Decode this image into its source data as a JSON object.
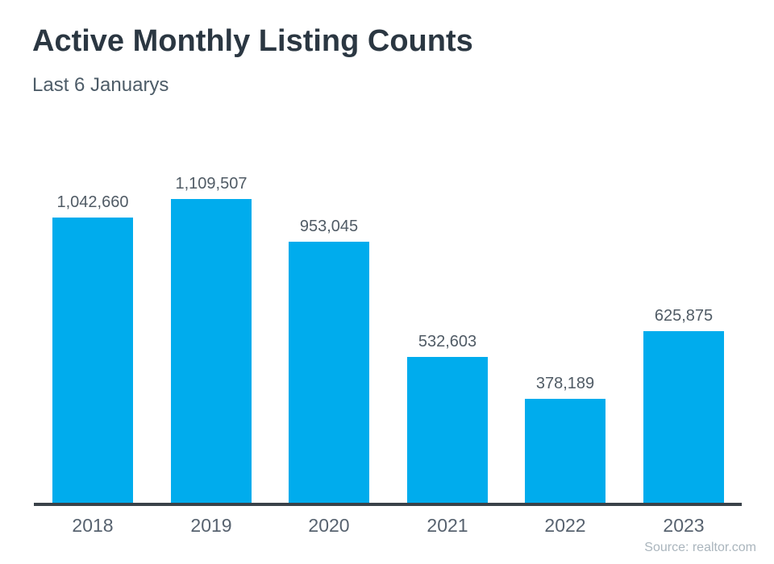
{
  "header": {
    "title": "Active Monthly Listing Counts",
    "subtitle": "Last 6 Januarys"
  },
  "footer": {
    "source": "Source: realtor.com"
  },
  "chart_data": {
    "type": "bar",
    "title": "Active Monthly Listing Counts",
    "subtitle": "Last 6 Januarys",
    "categories": [
      "2018",
      "2019",
      "2020",
      "2021",
      "2022",
      "2023"
    ],
    "values": [
      1042660,
      1109507,
      953045,
      532603,
      378189,
      625875
    ],
    "value_labels": [
      "1,042,660",
      "1,109,507",
      "953,045",
      "532,603",
      "378,189",
      "625,875"
    ],
    "xlabel": "",
    "ylabel": "",
    "ylim": [
      0,
      1150000
    ],
    "grid": false,
    "legend": null,
    "bar_color": "#00aced",
    "source": "Source: realtor.com"
  },
  "colors": {
    "background": "#ffffff",
    "bar": "#00aced",
    "title": "#2b3742",
    "subtitle": "#4d5c68",
    "value_label": "#505b65",
    "year_label": "#57626f",
    "axis_line": "#3a4249",
    "source": "#aab5bd"
  }
}
